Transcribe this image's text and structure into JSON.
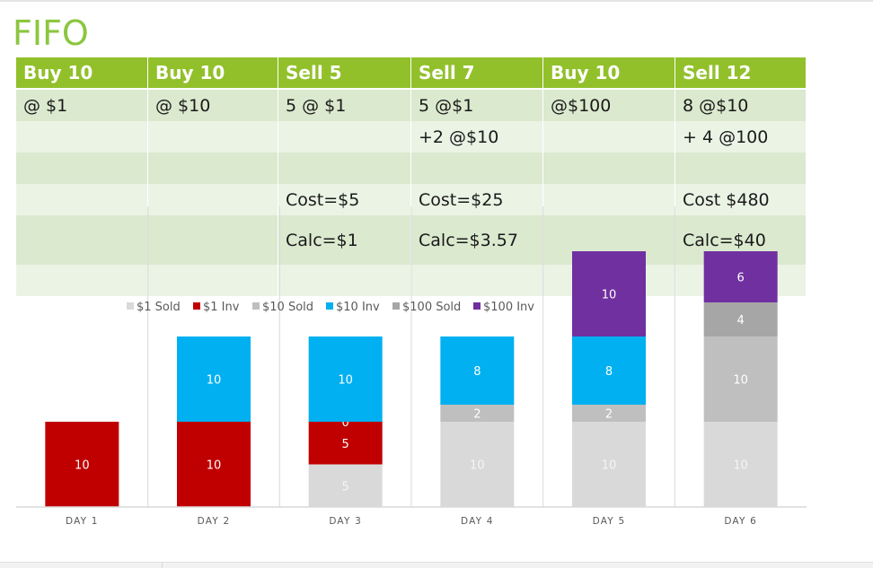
{
  "title": "FIFO",
  "table": {
    "headers": [
      "Buy 10",
      "Buy 10",
      "Sell 5",
      "Sell 7",
      "Buy 10",
      "Sell 12"
    ],
    "rows": [
      [
        "@ $1",
        "@ $10",
        "5 @ $1",
        "5 @$1",
        "@$100",
        "8 @$10"
      ],
      [
        "",
        "",
        "",
        "+2 @$10",
        "",
        "+ 4 @100"
      ],
      [
        "",
        "",
        "",
        "",
        "",
        ""
      ],
      [
        "",
        "",
        "Cost=$5",
        "Cost=$25",
        "",
        "Cost $480"
      ],
      [
        "",
        "",
        "Calc=$1",
        "Calc=$3.57",
        "",
        "Calc=$40"
      ],
      [
        "",
        "",
        "",
        "",
        "",
        ""
      ]
    ]
  },
  "chart_data": {
    "type": "bar",
    "stacked": true,
    "categories": [
      "DAY 1",
      "DAY 2",
      "DAY 3",
      "DAY 4",
      "DAY 5",
      "DAY 6"
    ],
    "legend_position": "top",
    "grid": false,
    "ylim": [
      0,
      30
    ],
    "series": [
      {
        "name": "$1 Sold",
        "color": "#d9d9d9",
        "label_color": "#f5f5f5",
        "values": [
          null,
          null,
          5,
          10,
          10,
          10
        ]
      },
      {
        "name": "$1 Inv",
        "color": "#c00000",
        "label_color": "#ffffff",
        "values": [
          10,
          10,
          5,
          null,
          null,
          null
        ]
      },
      {
        "name": "$10 Sold",
        "color": "#bfbfbf",
        "label_color": "#ffffff",
        "values": [
          null,
          null,
          0,
          2,
          2,
          10
        ]
      },
      {
        "name": "$10 Inv",
        "color": "#00b0f0",
        "label_color": "#ffffff",
        "values": [
          null,
          10,
          10,
          8,
          8,
          null
        ]
      },
      {
        "name": "$100 Sold",
        "color": "#a6a6a6",
        "label_color": "#ffffff",
        "values": [
          null,
          null,
          null,
          null,
          null,
          4
        ]
      },
      {
        "name": "$100 Inv",
        "color": "#7030a0",
        "label_color": "#ffffff",
        "values": [
          null,
          null,
          null,
          null,
          10,
          6
        ]
      }
    ]
  }
}
